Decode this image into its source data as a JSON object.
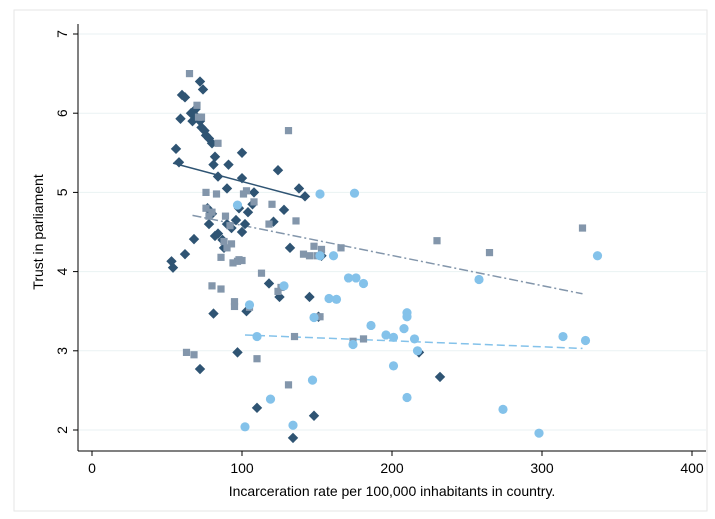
{
  "chart_data": {
    "type": "scatter",
    "title": "",
    "xlabel": "Incarceration rate per 100,000 inhabitants in country.",
    "ylabel": "Trust in parliament",
    "xlim": [
      0,
      400
    ],
    "ylim": [
      2,
      7
    ],
    "x_ticks": [
      0,
      100,
      200,
      300,
      400
    ],
    "y_ticks": [
      2,
      3,
      4,
      5,
      6,
      7
    ],
    "grid": "horizontal",
    "legend": "none",
    "series": [
      {
        "marker": "diamond",
        "color": "#2f5473",
        "points": [
          [
            53,
            4.13
          ],
          [
            54,
            4.05
          ],
          [
            56,
            5.55
          ],
          [
            58,
            5.38
          ],
          [
            59,
            5.93
          ],
          [
            60,
            6.23
          ],
          [
            62,
            6.2
          ],
          [
            62,
            4.22
          ],
          [
            66,
            6.0
          ],
          [
            67,
            5.9
          ],
          [
            68,
            4.41
          ],
          [
            69,
            6.05
          ],
          [
            70,
            5.95
          ],
          [
            72,
            5.9
          ],
          [
            72,
            6.4
          ],
          [
            73,
            5.82
          ],
          [
            74,
            6.3
          ],
          [
            75,
            5.78
          ],
          [
            76,
            5.72
          ],
          [
            77,
            4.8
          ],
          [
            78,
            4.6
          ],
          [
            78,
            5.68
          ],
          [
            80,
            5.62
          ],
          [
            80,
            4.73
          ],
          [
            81,
            3.47
          ],
          [
            81,
            5.35
          ],
          [
            82,
            5.45
          ],
          [
            82,
            4.45
          ],
          [
            84,
            5.2
          ],
          [
            84,
            4.48
          ],
          [
            87,
            4.4
          ],
          [
            88,
            4.3
          ],
          [
            90,
            5.05
          ],
          [
            90,
            4.6
          ],
          [
            91,
            5.35
          ],
          [
            93,
            4.55
          ],
          [
            96,
            4.65
          ],
          [
            97,
            2.98
          ],
          [
            98,
            4.8
          ],
          [
            100,
            5.18
          ],
          [
            100,
            4.5
          ],
          [
            100,
            5.5
          ],
          [
            102,
            4.6
          ],
          [
            103,
            3.5
          ],
          [
            104,
            4.75
          ],
          [
            107,
            4.85
          ],
          [
            108,
            5.0
          ],
          [
            110,
            2.28
          ],
          [
            118,
            3.85
          ],
          [
            121,
            4.63
          ],
          [
            124,
            5.28
          ],
          [
            125,
            3.68
          ],
          [
            128,
            4.78
          ],
          [
            132,
            4.3
          ],
          [
            134,
            1.9
          ],
          [
            138,
            5.05
          ],
          [
            142,
            4.95
          ],
          [
            145,
            3.68
          ],
          [
            148,
            2.18
          ],
          [
            151,
            3.43
          ],
          [
            153,
            4.2
          ],
          [
            218,
            2.98
          ],
          [
            232,
            2.67
          ],
          [
            72,
            2.77
          ]
        ]
      },
      {
        "marker": "square",
        "color": "#8396ab",
        "points": [
          [
            63,
            2.98
          ],
          [
            65,
            6.5
          ],
          [
            68,
            2.95
          ],
          [
            70,
            6.1
          ],
          [
            71,
            5.95
          ],
          [
            73,
            5.95
          ],
          [
            76,
            5.0
          ],
          [
            76,
            4.8
          ],
          [
            78,
            4.7
          ],
          [
            80,
            4.75
          ],
          [
            80,
            3.82
          ],
          [
            83,
            4.98
          ],
          [
            84,
            5.62
          ],
          [
            86,
            3.78
          ],
          [
            86,
            4.18
          ],
          [
            88,
            4.38
          ],
          [
            89,
            4.7
          ],
          [
            90,
            4.3
          ],
          [
            92,
            4.58
          ],
          [
            93,
            4.35
          ],
          [
            94,
            4.11
          ],
          [
            95,
            3.62
          ],
          [
            95,
            3.56
          ],
          [
            97,
            4.13
          ],
          [
            98,
            4.15
          ],
          [
            100,
            4.14
          ],
          [
            101,
            4.98
          ],
          [
            103,
            5.02
          ],
          [
            105,
            3.55
          ],
          [
            108,
            4.88
          ],
          [
            110,
            2.9
          ],
          [
            113,
            3.98
          ],
          [
            118,
            4.6
          ],
          [
            120,
            4.85
          ],
          [
            124,
            3.75
          ],
          [
            126,
            3.8
          ],
          [
            131,
            2.57
          ],
          [
            131,
            5.78
          ],
          [
            135,
            3.18
          ],
          [
            136,
            4.64
          ],
          [
            141,
            4.22
          ],
          [
            145,
            4.2
          ],
          [
            148,
            4.32
          ],
          [
            150,
            4.2
          ],
          [
            152,
            3.43
          ],
          [
            153,
            4.28
          ],
          [
            166,
            4.3
          ],
          [
            174,
            3.12
          ],
          [
            181,
            3.15
          ],
          [
            230,
            4.39
          ],
          [
            265,
            4.24
          ],
          [
            327,
            4.55
          ]
        ]
      },
      {
        "marker": "circle",
        "color": "#84c2ea",
        "points": [
          [
            97,
            4.84
          ],
          [
            102,
            2.04
          ],
          [
            105,
            3.58
          ],
          [
            110,
            3.18
          ],
          [
            119,
            2.39
          ],
          [
            128,
            3.82
          ],
          [
            134,
            2.06
          ],
          [
            147,
            2.63
          ],
          [
            148,
            3.42
          ],
          [
            152,
            4.2
          ],
          [
            152,
            4.98
          ],
          [
            158,
            3.66
          ],
          [
            161,
            4.2
          ],
          [
            163,
            3.65
          ],
          [
            171,
            3.92
          ],
          [
            174,
            3.08
          ],
          [
            175,
            4.99
          ],
          [
            176,
            3.92
          ],
          [
            181,
            3.85
          ],
          [
            186,
            3.32
          ],
          [
            196,
            3.2
          ],
          [
            201,
            2.81
          ],
          [
            201,
            3.17
          ],
          [
            208,
            3.28
          ],
          [
            210,
            3.43
          ],
          [
            210,
            3.48
          ],
          [
            210,
            2.41
          ],
          [
            215,
            3.15
          ],
          [
            217,
            3.0
          ],
          [
            258,
            3.9
          ],
          [
            274,
            2.26
          ],
          [
            298,
            1.96
          ],
          [
            314,
            3.18
          ],
          [
            329,
            3.13
          ],
          [
            337,
            4.2
          ]
        ]
      }
    ],
    "fit_lines": [
      {
        "color": "#2f5473",
        "style": "solid",
        "x": [
          54,
          143
        ],
        "y": [
          5.37,
          4.92
        ]
      },
      {
        "color": "#8396ab",
        "style": "dashdot",
        "x": [
          67,
          327
        ],
        "y": [
          4.71,
          3.72
        ]
      },
      {
        "color": "#84c2ea",
        "style": "dashed",
        "x": [
          102,
          327
        ],
        "y": [
          3.2,
          3.03
        ]
      }
    ]
  }
}
